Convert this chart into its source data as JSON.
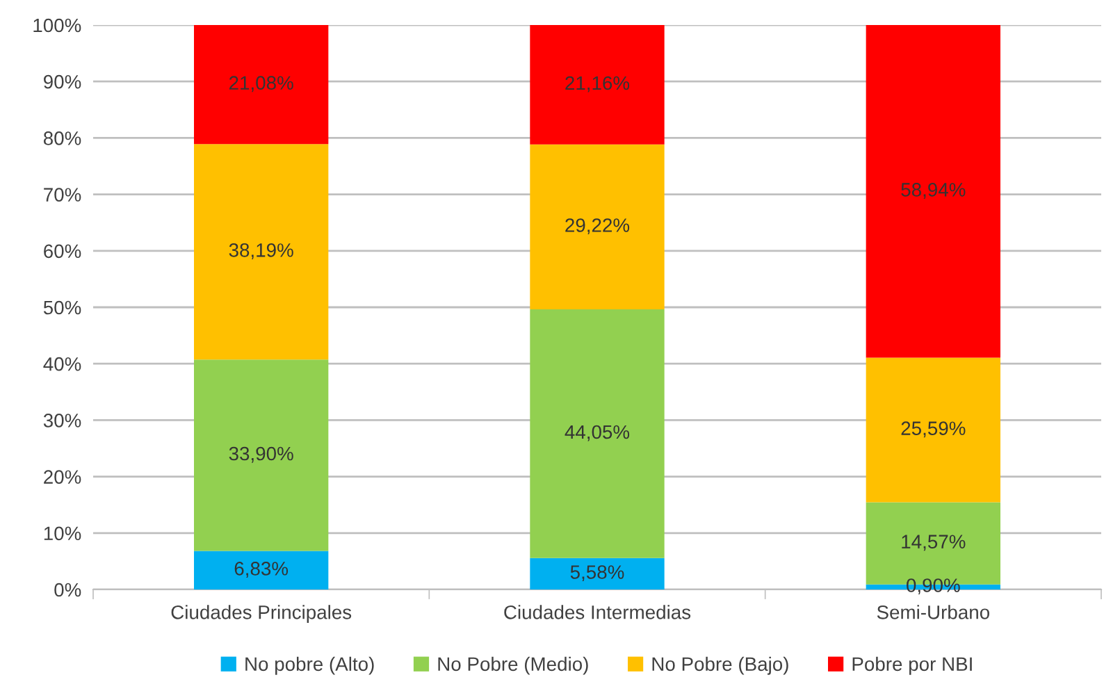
{
  "chart_data": {
    "type": "bar",
    "stacked": true,
    "categories": [
      "Ciudades Principales",
      "Ciudades Intermedias",
      "Semi-Urbano"
    ],
    "series": [
      {
        "name": "No pobre (Alto)",
        "color": "#00b0f0",
        "values": [
          6.83,
          5.58,
          0.9
        ],
        "value_labels": [
          "6,83%",
          "5,58%",
          "0,90%"
        ]
      },
      {
        "name": "No Pobre (Medio)",
        "color": "#92d050",
        "values": [
          33.9,
          44.05,
          14.57
        ],
        "value_labels": [
          "33,90%",
          "44,05%",
          "14,57%"
        ]
      },
      {
        "name": "No Pobre (Bajo)",
        "color": "#ffc000",
        "values": [
          38.19,
          29.22,
          25.59
        ],
        "value_labels": [
          "38,19%",
          "29,22%",
          "25,59%"
        ]
      },
      {
        "name": "Pobre por NBI",
        "color": "#ff0000",
        "values": [
          21.08,
          21.16,
          58.94
        ],
        "value_labels": [
          "21,08%",
          "21,16%",
          "58,94%"
        ]
      }
    ],
    "ylim": [
      0,
      100
    ],
    "yticks": [
      {
        "value": 0,
        "label": "0%"
      },
      {
        "value": 10,
        "label": "10%"
      },
      {
        "value": 20,
        "label": "20%"
      },
      {
        "value": 30,
        "label": "30%"
      },
      {
        "value": 40,
        "label": "40%"
      },
      {
        "value": 50,
        "label": "50%"
      },
      {
        "value": 60,
        "label": "60%"
      },
      {
        "value": 70,
        "label": "70%"
      },
      {
        "value": 80,
        "label": "80%"
      },
      {
        "value": 90,
        "label": "90%"
      },
      {
        "value": 100,
        "label": "100%"
      }
    ],
    "grid": "y",
    "legend": "bottom"
  }
}
